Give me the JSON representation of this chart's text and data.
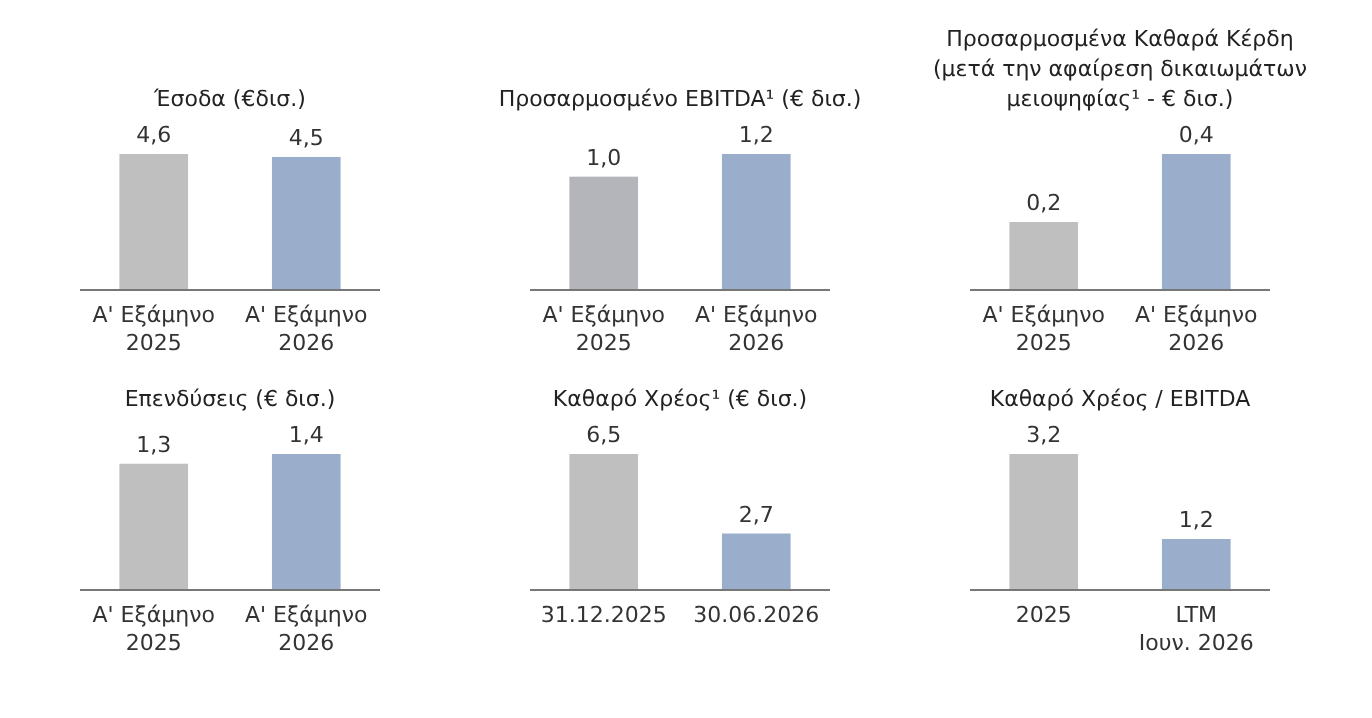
{
  "chart_data": [
    {
      "type": "bar",
      "title": "Έσοδα (€δισ.)",
      "categories": [
        "Α' Εξάμηνο\n2025",
        "Α' Εξάμηνο\n2026"
      ],
      "values": [
        4.6,
        4.5
      ],
      "value_labels": [
        "4,6",
        "4,5"
      ],
      "colors": [
        "#bfbfbf",
        "#9aaecb"
      ]
    },
    {
      "type": "bar",
      "title": "Προσαρμοσμένο EBITDA¹ (€ δισ.)",
      "categories": [
        "Α' Εξάμηνο\n2025",
        "Α' Εξάμηνο\n2026"
      ],
      "values": [
        1.0,
        1.2
      ],
      "value_labels": [
        "1,0",
        "1,2"
      ],
      "colors": [
        "#b4b4bb",
        "#9aaecb"
      ]
    },
    {
      "type": "bar",
      "title": "Προσαρμοσμένα Καθαρά Κέρδη\n(μετά την αφαίρεση δικαιωμάτων\nμειοψηφίας¹ - € δισ.)",
      "categories": [
        "Α' Εξάμηνο\n2025",
        "Α' Εξάμηνο\n2026"
      ],
      "values": [
        0.2,
        0.4
      ],
      "value_labels": [
        "0,2",
        "0,4"
      ],
      "colors": [
        "#bfbfbf",
        "#9aaecb"
      ]
    },
    {
      "type": "bar",
      "title": "Επενδύσεις (€ δισ.)",
      "categories": [
        "Α' Εξάμηνο\n2025",
        "Α' Εξάμηνο\n2026"
      ],
      "values": [
        1.3,
        1.4
      ],
      "value_labels": [
        "1,3",
        "1,4"
      ],
      "colors": [
        "#bfbfbf",
        "#9aaecb"
      ]
    },
    {
      "type": "bar",
      "title": "Καθαρό Χρέος¹ (€ δισ.)",
      "categories": [
        "31.12.2025",
        "30.06.2026"
      ],
      "values": [
        6.5,
        2.7
      ],
      "value_labels": [
        "6,5",
        "2,7"
      ],
      "colors": [
        "#bfbfbf",
        "#9aaecb"
      ]
    },
    {
      "type": "bar",
      "title": "Καθαρό Χρέος / EBITDA",
      "categories": [
        "2025",
        "LTM\nΙουν. 2026"
      ],
      "values": [
        3.2,
        1.2
      ],
      "value_labels": [
        "3,2",
        "1,2"
      ],
      "colors": [
        "#bfbfbf",
        "#9aaecb"
      ]
    }
  ]
}
